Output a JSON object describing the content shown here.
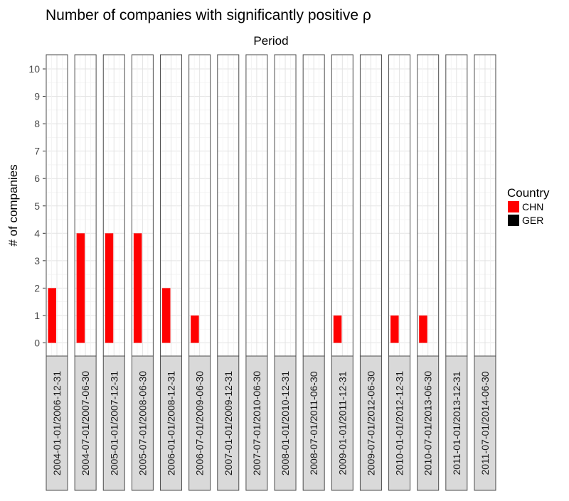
{
  "chart_data": {
    "type": "bar",
    "title": "Number of companies with significantly positive ρ",
    "facet_label": "Period",
    "ylabel": "# of companies",
    "xlabel": "",
    "ylim": [
      0,
      10
    ],
    "yticks": [
      0,
      1,
      2,
      3,
      4,
      5,
      6,
      7,
      8,
      9,
      10
    ],
    "grid": true,
    "legend_placement": "right",
    "legend": {
      "title": "Country",
      "items": [
        {
          "label": "CHN",
          "color": "#ff0000"
        },
        {
          "label": "GER",
          "color": "#000000"
        }
      ]
    },
    "categories": [
      "2004-01-01/2006-12-31",
      "2004-07-01/2007-06-30",
      "2005-01-01/2007-12-31",
      "2005-07-01/2008-06-30",
      "2006-01-01/2008-12-31",
      "2006-07-01/2009-06-30",
      "2007-01-01/2009-12-31",
      "2007-07-01/2010-06-30",
      "2008-01-01/2010-12-31",
      "2008-07-01/2011-06-30",
      "2009-01-01/2011-12-31",
      "2009-07-01/2012-06-30",
      "2010-01-01/2012-12-31",
      "2010-07-01/2013-06-30",
      "2011-01-01/2013-12-31",
      "2011-07-01/2014-06-30"
    ],
    "series": [
      {
        "name": "CHN",
        "color": "#ff0000",
        "values": [
          2,
          4,
          4,
          4,
          2,
          1,
          0,
          0,
          0,
          0,
          1,
          0,
          1,
          1,
          0,
          0
        ]
      },
      {
        "name": "GER",
        "color": "#000000",
        "values": [
          0,
          0,
          0,
          0,
          0,
          0,
          0,
          0,
          0,
          0,
          0,
          0,
          0,
          0,
          0,
          0
        ]
      }
    ]
  }
}
